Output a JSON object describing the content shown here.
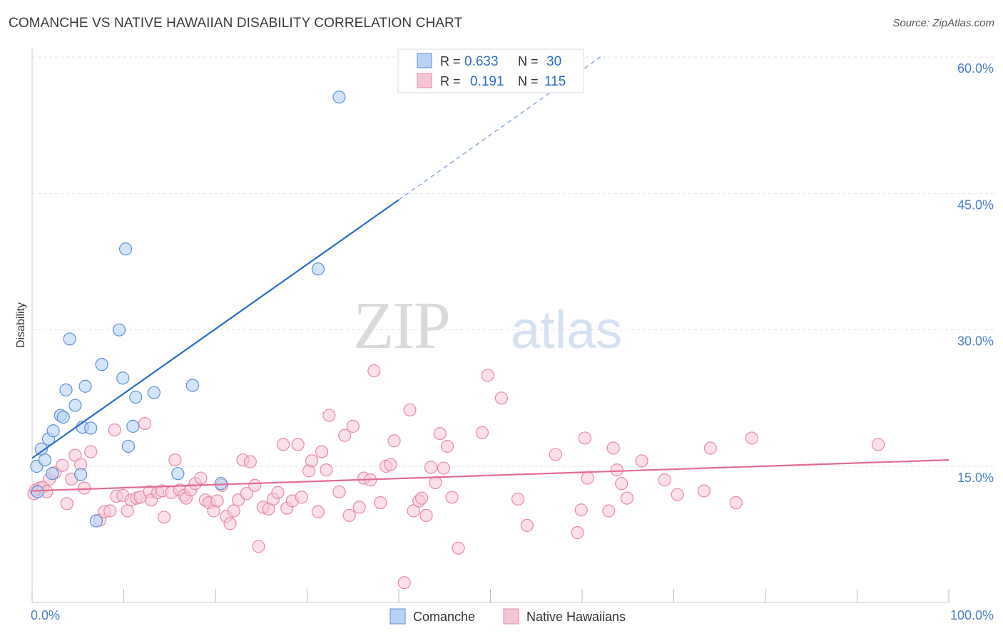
{
  "title": "COMANCHE VS NATIVE HAWAIIAN DISABILITY CORRELATION CHART",
  "source": "Source: ZipAtlas.com",
  "watermark": {
    "zip": "ZIP",
    "atlas": "atlas"
  },
  "colors": {
    "comanche_fill": "#b8d3f5",
    "comanche_stroke": "#5b8fd4",
    "comanche_line": "#2a6fc9",
    "hawaiian_fill": "#f7c6d6",
    "hawaiian_stroke": "#e689a8",
    "hawaiian_line": "#e36a96",
    "tick_label": "#4a7fc9",
    "grid": "#e2e2e2"
  },
  "legend_top": [
    {
      "r_label": "R =",
      "r_value": "0.633",
      "n_label": "N =",
      "n_value": "30"
    },
    {
      "r_label": "R =",
      "r_value": "0.191",
      "n_label": "N =",
      "n_value": "115"
    }
  ],
  "legend_bottom": [
    "Comanche",
    "Native Hawaiians"
  ],
  "chart_data": {
    "type": "scatter",
    "ylabel": "Disability",
    "xlim": [
      0,
      100
    ],
    "ylim": [
      0,
      63
    ],
    "x_tick_labels": [
      "0.0%",
      "100.0%"
    ],
    "y_ticks": [
      15,
      30,
      45,
      60
    ],
    "y_tick_labels": [
      "15.0%",
      "30.0%",
      "45.0%",
      "60.0%"
    ],
    "grid": true,
    "legend_placement": "top-center",
    "series": [
      {
        "name": "Comanche",
        "trend": {
          "x": [
            0,
            40
          ],
          "y": [
            15.9,
            44.3
          ],
          "extend_to_x": 62,
          "extend_to_y": 60.0
        },
        "points": [
          [
            0.5,
            15.0
          ],
          [
            0.6,
            12.2
          ],
          [
            1.0,
            16.9
          ],
          [
            1.4,
            15.7
          ],
          [
            1.8,
            18.0
          ],
          [
            2.2,
            14.2
          ],
          [
            2.3,
            18.9
          ],
          [
            3.1,
            20.6
          ],
          [
            3.4,
            20.4
          ],
          [
            3.7,
            23.4
          ],
          [
            4.1,
            29.0
          ],
          [
            4.7,
            21.7
          ],
          [
            5.3,
            14.1
          ],
          [
            5.5,
            19.3
          ],
          [
            5.8,
            23.8
          ],
          [
            6.4,
            19.2
          ],
          [
            7.0,
            9.0
          ],
          [
            7.6,
            26.2
          ],
          [
            9.5,
            30.0
          ],
          [
            9.9,
            24.7
          ],
          [
            10.2,
            38.9
          ],
          [
            10.5,
            17.2
          ],
          [
            11.0,
            19.4
          ],
          [
            11.3,
            22.6
          ],
          [
            13.3,
            23.1
          ],
          [
            15.9,
            14.2
          ],
          [
            17.5,
            23.9
          ],
          [
            20.6,
            13.1
          ],
          [
            31.2,
            36.7
          ],
          [
            33.5,
            55.6
          ]
        ]
      },
      {
        "name": "Native Hawaiians",
        "trend": {
          "x": [
            0,
            100
          ],
          "y": [
            12.3,
            15.7
          ]
        },
        "points": [
          [
            0.2,
            12.0
          ],
          [
            0.4,
            12.4
          ],
          [
            0.8,
            12.6
          ],
          [
            1.2,
            12.7
          ],
          [
            1.6,
            12.2
          ],
          [
            1.9,
            13.6
          ],
          [
            2.5,
            14.3
          ],
          [
            3.3,
            15.1
          ],
          [
            3.8,
            10.9
          ],
          [
            4.3,
            13.6
          ],
          [
            4.7,
            16.2
          ],
          [
            5.3,
            15.2
          ],
          [
            5.7,
            12.6
          ],
          [
            6.4,
            16.6
          ],
          [
            7.4,
            9.1
          ],
          [
            7.9,
            10.0
          ],
          [
            8.5,
            10.1
          ],
          [
            9.0,
            19.0
          ],
          [
            9.2,
            11.7
          ],
          [
            9.9,
            11.8
          ],
          [
            10.4,
            10.1
          ],
          [
            10.8,
            11.3
          ],
          [
            11.4,
            11.5
          ],
          [
            11.8,
            11.6
          ],
          [
            12.3,
            19.7
          ],
          [
            12.8,
            12.2
          ],
          [
            13.0,
            11.3
          ],
          [
            13.7,
            12.1
          ],
          [
            14.2,
            12.3
          ],
          [
            14.4,
            9.4
          ],
          [
            15.2,
            12.1
          ],
          [
            15.6,
            15.7
          ],
          [
            16.1,
            12.4
          ],
          [
            16.6,
            11.8
          ],
          [
            16.8,
            11.5
          ],
          [
            17.3,
            12.4
          ],
          [
            17.8,
            13.1
          ],
          [
            18.4,
            13.7
          ],
          [
            18.9,
            11.3
          ],
          [
            19.3,
            11.0
          ],
          [
            19.8,
            10.1
          ],
          [
            20.2,
            11.2
          ],
          [
            20.7,
            12.9
          ],
          [
            21.2,
            9.5
          ],
          [
            21.6,
            8.7
          ],
          [
            22.0,
            10.1
          ],
          [
            22.5,
            11.3
          ],
          [
            23.0,
            15.7
          ],
          [
            23.4,
            12.0
          ],
          [
            23.8,
            15.5
          ],
          [
            24.3,
            12.9
          ],
          [
            24.7,
            6.2
          ],
          [
            25.2,
            10.5
          ],
          [
            25.8,
            10.3
          ],
          [
            26.3,
            11.4
          ],
          [
            26.8,
            12.1
          ],
          [
            27.4,
            17.4
          ],
          [
            27.8,
            10.4
          ],
          [
            28.4,
            11.2
          ],
          [
            29.0,
            17.4
          ],
          [
            29.4,
            11.6
          ],
          [
            30.2,
            14.5
          ],
          [
            30.5,
            15.6
          ],
          [
            31.2,
            10.0
          ],
          [
            31.6,
            16.6
          ],
          [
            32.1,
            14.6
          ],
          [
            32.4,
            20.6
          ],
          [
            33.5,
            12.2
          ],
          [
            34.1,
            18.4
          ],
          [
            34.6,
            9.6
          ],
          [
            35.0,
            19.4
          ],
          [
            35.7,
            10.5
          ],
          [
            36.2,
            13.7
          ],
          [
            36.9,
            13.5
          ],
          [
            37.3,
            25.5
          ],
          [
            38.0,
            11.0
          ],
          [
            38.6,
            15.0
          ],
          [
            39.1,
            15.2
          ],
          [
            39.5,
            17.8
          ],
          [
            40.6,
            2.2
          ],
          [
            41.2,
            21.2
          ],
          [
            41.6,
            10.1
          ],
          [
            42.2,
            11.2
          ],
          [
            42.5,
            11.5
          ],
          [
            43.0,
            9.6
          ],
          [
            43.5,
            14.9
          ],
          [
            44.0,
            13.2
          ],
          [
            44.5,
            18.6
          ],
          [
            44.9,
            14.8
          ],
          [
            45.3,
            17.2
          ],
          [
            45.8,
            11.6
          ],
          [
            46.5,
            6.0
          ],
          [
            49.1,
            18.7
          ],
          [
            49.7,
            25.0
          ],
          [
            51.2,
            22.5
          ],
          [
            53.0,
            11.4
          ],
          [
            54.0,
            8.5
          ],
          [
            57.1,
            16.3
          ],
          [
            59.5,
            7.7
          ],
          [
            59.9,
            10.2
          ],
          [
            60.3,
            18.1
          ],
          [
            60.6,
            13.7
          ],
          [
            62.9,
            10.1
          ],
          [
            63.4,
            17.0
          ],
          [
            63.8,
            14.6
          ],
          [
            64.3,
            13.1
          ],
          [
            64.9,
            11.5
          ],
          [
            66.5,
            15.6
          ],
          [
            69.0,
            13.5
          ],
          [
            70.4,
            11.9
          ],
          [
            73.3,
            12.3
          ],
          [
            74.0,
            17.0
          ],
          [
            76.8,
            11.0
          ],
          [
            78.5,
            18.1
          ],
          [
            92.3,
            17.4
          ]
        ]
      }
    ]
  }
}
